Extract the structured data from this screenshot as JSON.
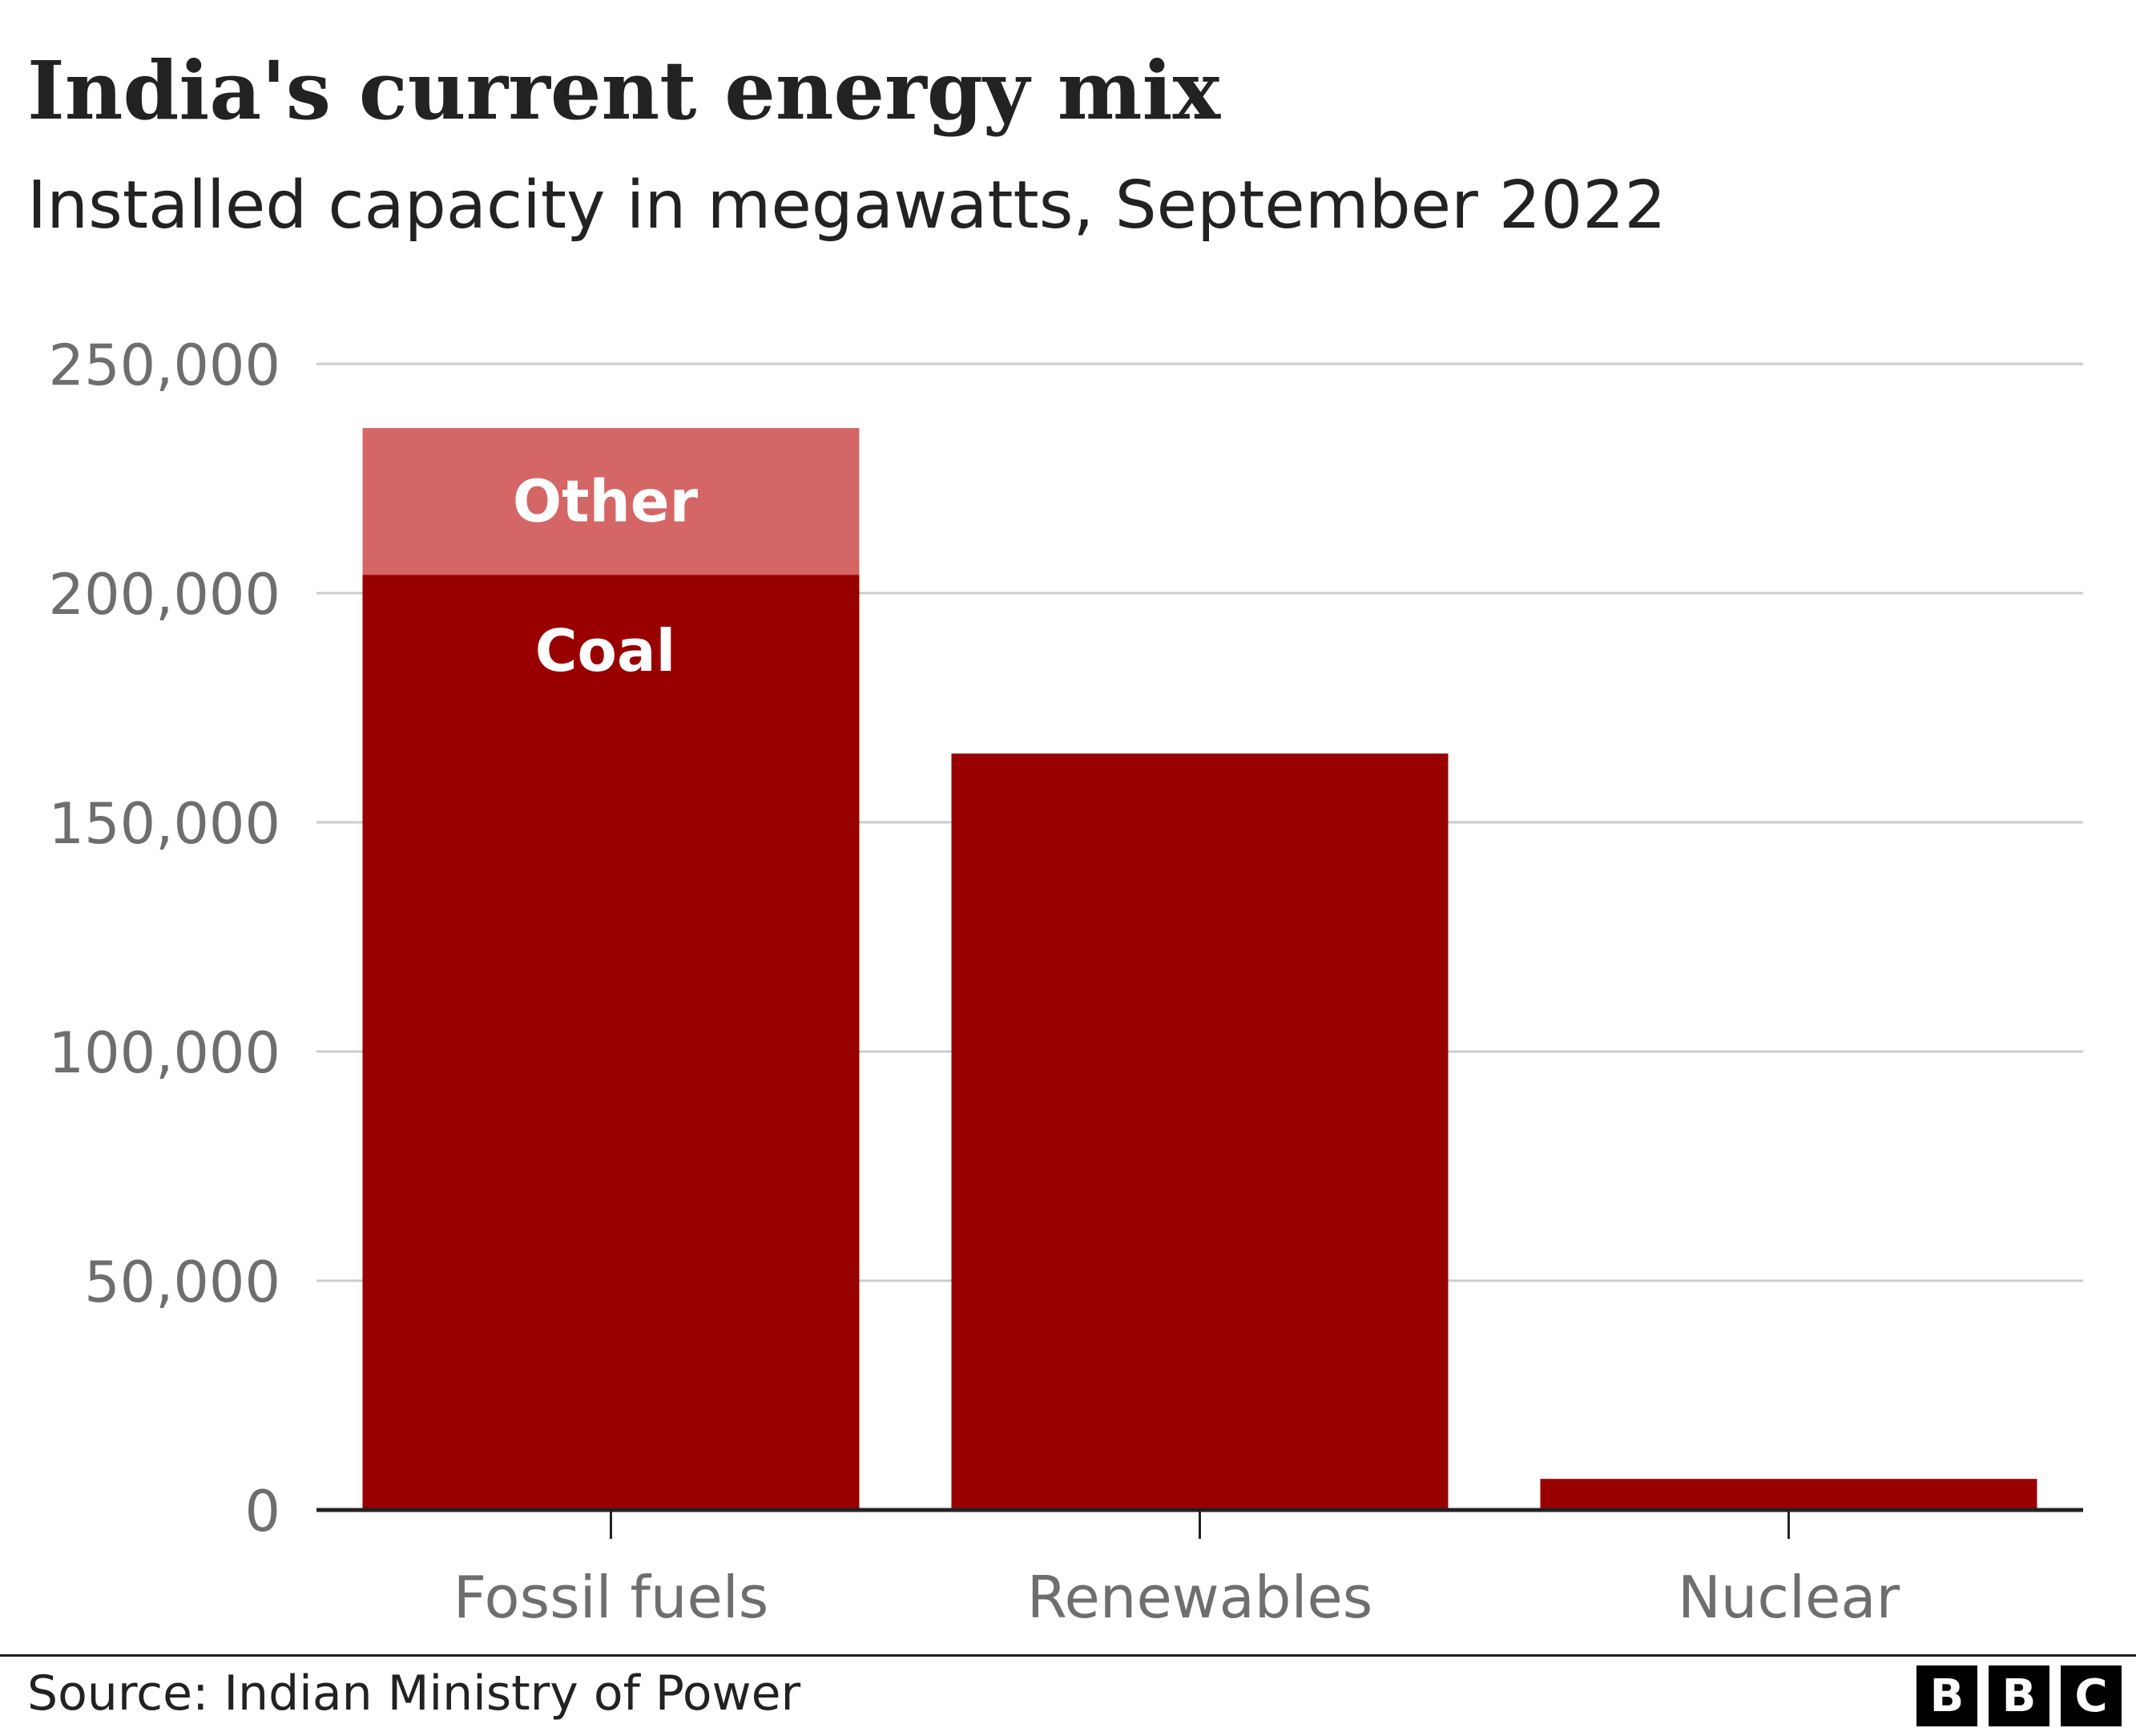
{
  "title": "India's current energy mix",
  "subtitle": "Installed capacity in megawatts, September 2022",
  "source": "Source: Indian Ministry of Power",
  "logo": [
    "B",
    "B",
    "C"
  ],
  "colors": {
    "coal": "#990000",
    "other": "#d56666",
    "bar": "#990000",
    "grid": "#cccccc",
    "axis": "#222222",
    "tick_text": "#6e6e6e"
  },
  "chart_data": {
    "type": "bar",
    "stacked": true,
    "title": "India's current energy mix",
    "subtitle": "Installed capacity in megawatts, September 2022",
    "xlabel": "",
    "ylabel": "",
    "ylim": [
      0,
      250000
    ],
    "yticks": [
      0,
      50000,
      100000,
      150000,
      200000,
      250000
    ],
    "ytick_labels": [
      "0",
      "50,000",
      "100,000",
      "150,000",
      "200,000",
      "250,000"
    ],
    "grid": true,
    "categories": [
      "Fossil fuels",
      "Renewables",
      "Nuclear"
    ],
    "series": [
      {
        "name": "Coal",
        "color": "#990000",
        "values": [
          204000,
          165000,
          6780
        ]
      },
      {
        "name": "Other",
        "color": "#d56666",
        "values": [
          32000,
          0,
          0
        ]
      }
    ],
    "segment_labels": [
      {
        "category": "Fossil fuels",
        "series": "Other",
        "text": "Other"
      },
      {
        "category": "Fossil fuels",
        "series": "Coal",
        "text": "Coal"
      }
    ]
  }
}
